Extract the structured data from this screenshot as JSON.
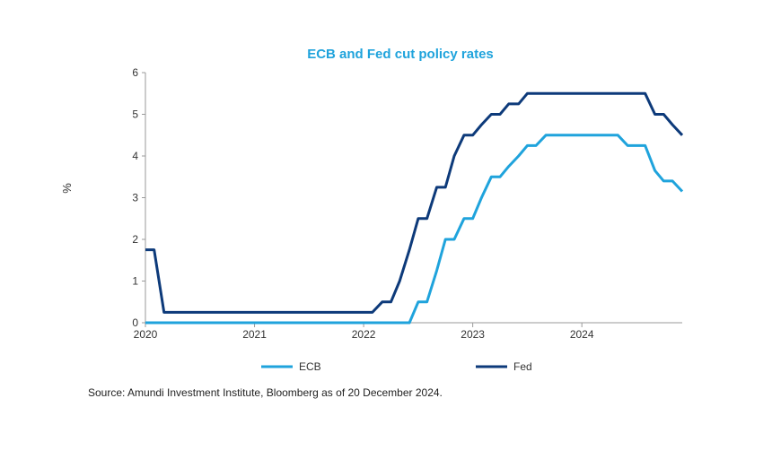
{
  "chart_data": {
    "type": "line",
    "title": "ECB and Fed cut policy rates",
    "ylabel": "%",
    "xlabel": "",
    "xlim": [
      2020.0,
      2024.92
    ],
    "ylim": [
      0,
      6
    ],
    "yticks": [
      "0",
      "1",
      "2",
      "3",
      "4",
      "5",
      "6"
    ],
    "xticks": [
      "2020",
      "2021",
      "2022",
      "2023",
      "2024"
    ],
    "grid": false,
    "legend": "bottom",
    "source": "Source: Amundi Investment Institute, Bloomberg as of 20 December 2024.",
    "series": [
      {
        "name": "ECB",
        "color": "#1fa3dc",
        "points": [
          [
            2020.0,
            0
          ],
          [
            2022.42,
            0
          ],
          [
            2022.5,
            0.5
          ],
          [
            2022.58,
            0.5
          ],
          [
            2022.67,
            1.25
          ],
          [
            2022.75,
            2.0
          ],
          [
            2022.83,
            2.0
          ],
          [
            2022.92,
            2.5
          ],
          [
            2023.0,
            2.5
          ],
          [
            2023.08,
            3.0
          ],
          [
            2023.17,
            3.5
          ],
          [
            2023.25,
            3.5
          ],
          [
            2023.33,
            3.75
          ],
          [
            2023.42,
            4.0
          ],
          [
            2023.5,
            4.25
          ],
          [
            2023.58,
            4.25
          ],
          [
            2023.67,
            4.5
          ],
          [
            2024.33,
            4.5
          ],
          [
            2024.42,
            4.25
          ],
          [
            2024.58,
            4.25
          ],
          [
            2024.67,
            3.65
          ],
          [
            2024.75,
            3.4
          ],
          [
            2024.83,
            3.4
          ],
          [
            2024.92,
            3.15
          ]
        ]
      },
      {
        "name": "Fed",
        "color": "#0d3a7a",
        "points": [
          [
            2020.0,
            1.75
          ],
          [
            2020.08,
            1.75
          ],
          [
            2020.17,
            0.25
          ],
          [
            2022.08,
            0.25
          ],
          [
            2022.17,
            0.5
          ],
          [
            2022.25,
            0.5
          ],
          [
            2022.33,
            1.0
          ],
          [
            2022.42,
            1.75
          ],
          [
            2022.5,
            2.5
          ],
          [
            2022.58,
            2.5
          ],
          [
            2022.67,
            3.25
          ],
          [
            2022.75,
            3.25
          ],
          [
            2022.83,
            4.0
          ],
          [
            2022.92,
            4.5
          ],
          [
            2023.0,
            4.5
          ],
          [
            2023.08,
            4.75
          ],
          [
            2023.17,
            5.0
          ],
          [
            2023.25,
            5.0
          ],
          [
            2023.33,
            5.25
          ],
          [
            2023.42,
            5.25
          ],
          [
            2023.5,
            5.5
          ],
          [
            2024.58,
            5.5
          ],
          [
            2024.67,
            5.0
          ],
          [
            2024.75,
            5.0
          ],
          [
            2024.83,
            4.75
          ],
          [
            2024.92,
            4.5
          ]
        ]
      }
    ]
  }
}
